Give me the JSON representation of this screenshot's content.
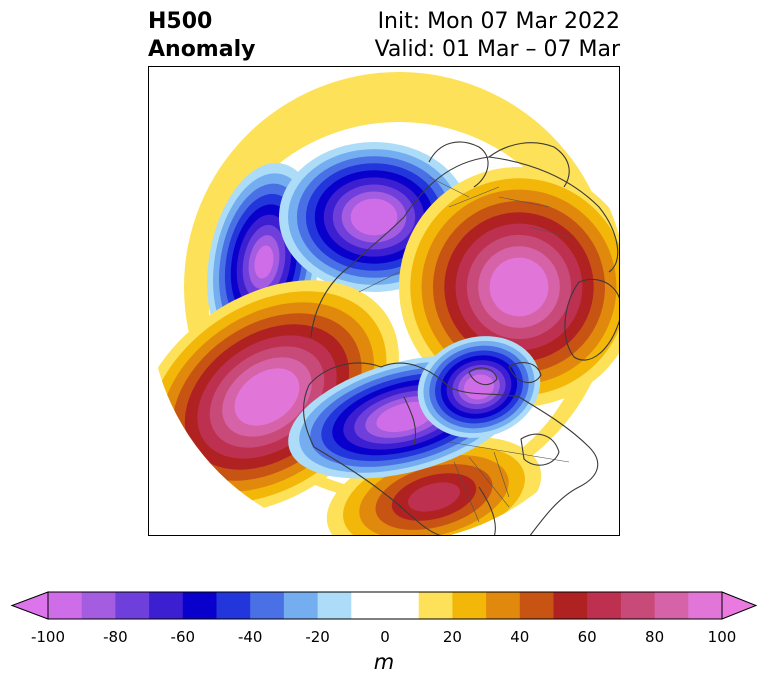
{
  "header": {
    "title_line1": "H500",
    "title_line2": "Anomaly",
    "init_label": "Init: Mon 07 Mar 2022",
    "valid_label": "Valid: 01 Mar – 07 Mar"
  },
  "colorbar": {
    "unit": "m",
    "ticks": [
      "-100",
      "-80",
      "-60",
      "-40",
      "-20",
      "0",
      "20",
      "40",
      "60",
      "80",
      "100"
    ],
    "bins": [
      {
        "range": [
          -100,
          -90
        ],
        "color": "#cf6de8"
      },
      {
        "range": [
          -90,
          -80
        ],
        "color": "#a45ce0"
      },
      {
        "range": [
          -80,
          -70
        ],
        "color": "#6f3fdc"
      },
      {
        "range": [
          -70,
          -60
        ],
        "color": "#3d1fd2"
      },
      {
        "range": [
          -60,
          -50
        ],
        "color": "#0a00cc"
      },
      {
        "range": [
          -50,
          -40
        ],
        "color": "#2236dc"
      },
      {
        "range": [
          -40,
          -30
        ],
        "color": "#4a70e6"
      },
      {
        "range": [
          -30,
          -20
        ],
        "color": "#74aef0"
      },
      {
        "range": [
          -20,
          -10
        ],
        "color": "#acdcf8"
      },
      {
        "range": [
          -10,
          10
        ],
        "color": "#ffffff"
      },
      {
        "range": [
          10,
          20
        ],
        "color": "#fde158"
      },
      {
        "range": [
          20,
          30
        ],
        "color": "#f2b708"
      },
      {
        "range": [
          30,
          40
        ],
        "color": "#e0890c"
      },
      {
        "range": [
          40,
          50
        ],
        "color": "#c85414"
      },
      {
        "range": [
          50,
          60
        ],
        "color": "#b02222"
      },
      {
        "range": [
          60,
          70
        ],
        "color": "#be3050"
      },
      {
        "range": [
          70,
          80
        ],
        "color": "#c84a78"
      },
      {
        "range": [
          80,
          90
        ],
        "color": "#d662a8"
      },
      {
        "range": [
          90,
          100
        ],
        "color": "#e276d8"
      }
    ],
    "extend_low_color": "#dc74ec",
    "extend_high_color": "#e87ae0"
  },
  "map": {
    "projection": "polar-stereographic",
    "region": "northern-hemisphere",
    "features": [
      {
        "name": "positive-anomaly-western-north-america",
        "peak": 100
      },
      {
        "name": "positive-anomaly-greenland-atlantic",
        "peak": 100
      },
      {
        "name": "positive-anomaly-southeast-us",
        "peak": 60
      },
      {
        "name": "negative-anomaly-central-canada",
        "peak": -100
      },
      {
        "name": "negative-anomaly-labrador",
        "peak": -100
      },
      {
        "name": "negative-anomaly-siberia",
        "peak": -100
      },
      {
        "name": "negative-anomaly-east-asia",
        "peak": -90
      }
    ]
  }
}
